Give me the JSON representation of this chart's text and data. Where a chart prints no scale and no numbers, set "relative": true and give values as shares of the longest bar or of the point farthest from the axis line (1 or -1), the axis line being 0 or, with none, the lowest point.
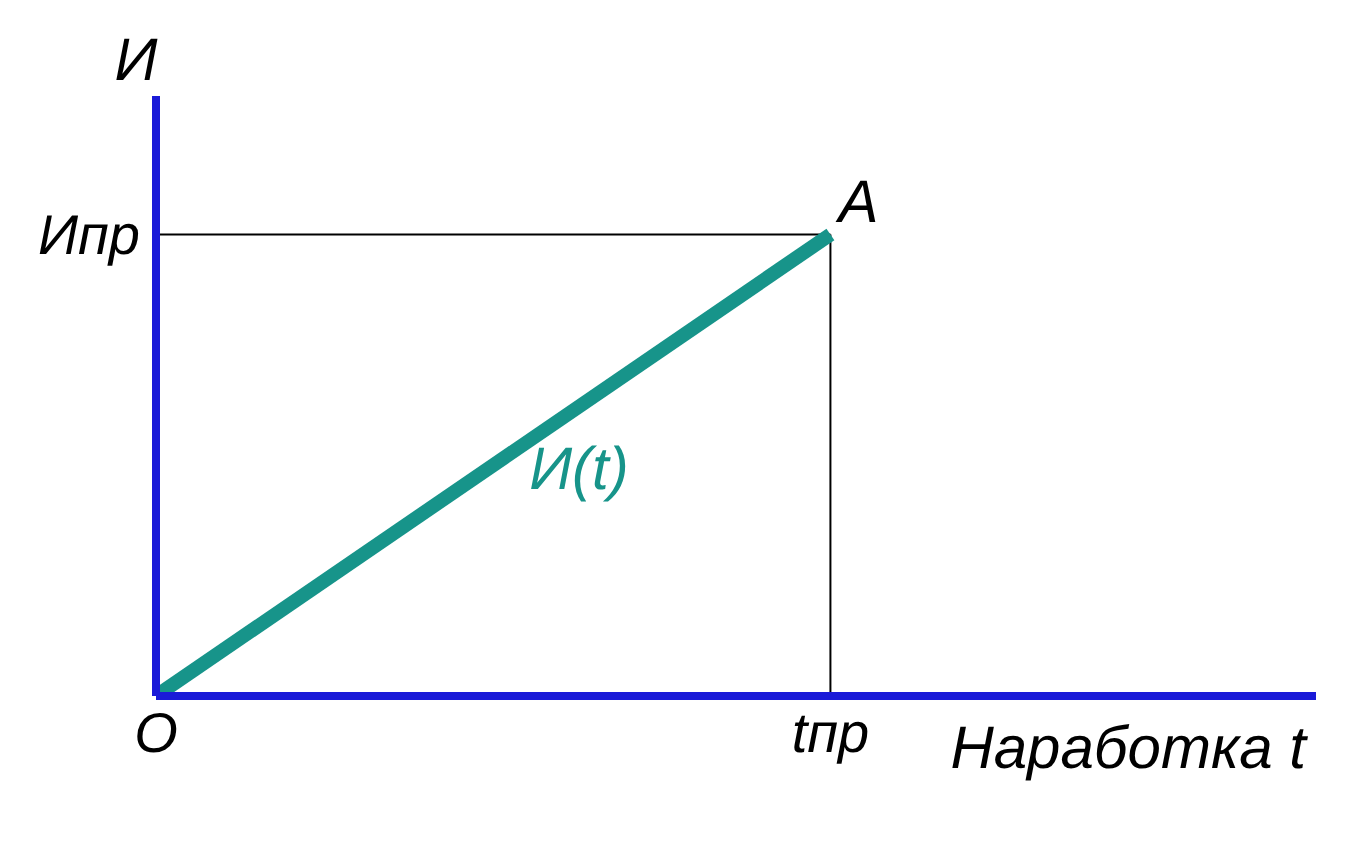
{
  "chart_data": {
    "type": "line",
    "relative": true,
    "xlabel": "Наработка t",
    "ylabel": "И",
    "categories": [
      "O",
      "tпр"
    ],
    "series": [
      {
        "name": "И(t)",
        "color": "#17948a",
        "values": [
          0,
          1
        ]
      }
    ],
    "ref_lines": [
      {
        "axis": "y",
        "value": 1,
        "label": "Ипр",
        "color": "#000000"
      },
      {
        "axis": "x",
        "value": "tпр",
        "color": "#000000"
      }
    ],
    "annotations": [
      {
        "text": "A",
        "x": "tпр",
        "y": 1
      }
    ],
    "legend": false,
    "grid": false,
    "marker": "none",
    "line_style": "solid"
  }
}
